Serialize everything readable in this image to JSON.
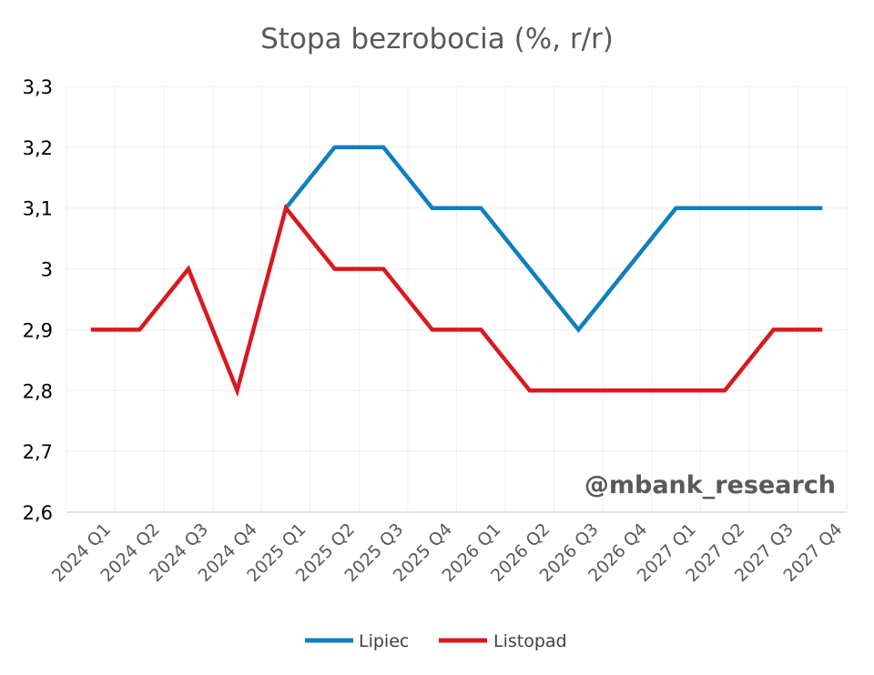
{
  "colors": {
    "lipiec": "#0f7fc0",
    "listopad": "#d9181f",
    "grid": "#eeeeee",
    "axis": "#d9d9d9"
  },
  "watermark": "@mbank_research",
  "chart_data": {
    "type": "line",
    "title": "Stopa bezrobocia (%, r/r)",
    "xlabel": "",
    "ylabel": "",
    "ylim": [
      2.6,
      3.3
    ],
    "yticks": [
      "2,6",
      "2,7",
      "2,8",
      "2,9",
      "3",
      "3,1",
      "3,2",
      "3,3"
    ],
    "categories": [
      "2024 Q1",
      "2024 Q2",
      "2024 Q3",
      "2024 Q4",
      "2025 Q1",
      "2025 Q2",
      "2025 Q3",
      "2025 Q4",
      "2026 Q1",
      "2026 Q2",
      "2026 Q3",
      "2026 Q4",
      "2027 Q1",
      "2027 Q2",
      "2027 Q3",
      "2027 Q4"
    ],
    "series": [
      {
        "name": "Lipiec",
        "values": [
          null,
          null,
          null,
          null,
          3.1,
          3.2,
          3.2,
          3.1,
          3.1,
          3.0,
          2.9,
          3.0,
          3.1,
          3.1,
          3.1,
          3.1
        ]
      },
      {
        "name": "Listopad",
        "values": [
          2.9,
          2.9,
          3.0,
          2.8,
          3.1,
          3.0,
          3.0,
          2.9,
          2.9,
          2.8,
          2.8,
          2.8,
          2.8,
          2.8,
          2.9,
          2.9
        ]
      }
    ],
    "grid": true,
    "legend": "bottom"
  }
}
